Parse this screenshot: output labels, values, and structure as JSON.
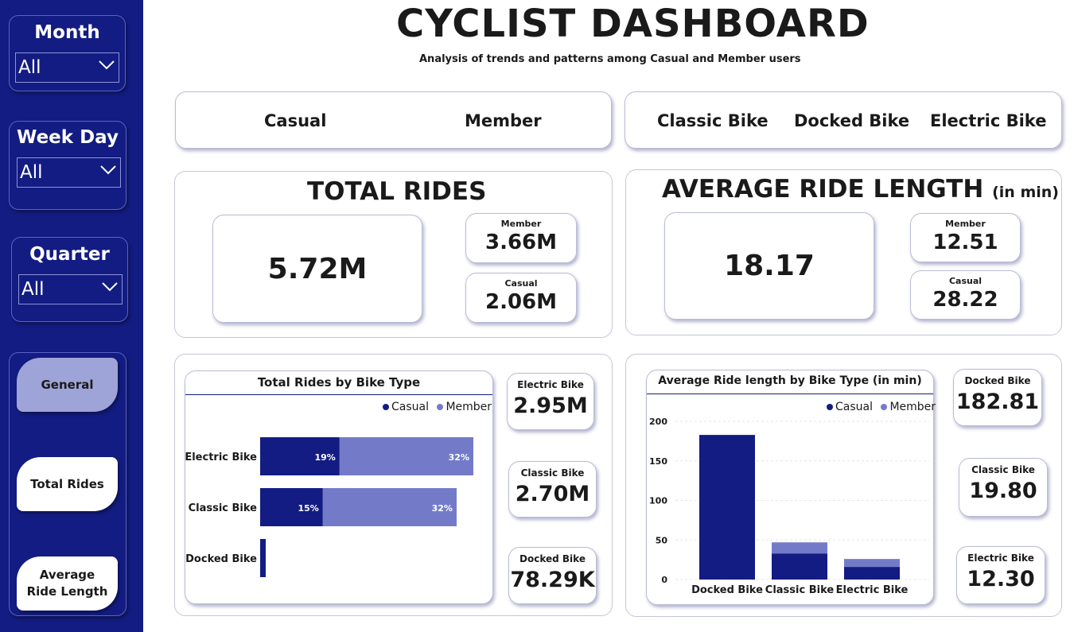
{
  "colors": {
    "sidebar": "#131c82",
    "casual": "#131c82",
    "member": "#737bc9",
    "active_button": "#9fa4d8",
    "button": "#ffffff"
  },
  "header": {
    "title": "CYCLIST DASHBOARD",
    "subtitle": "Analysis of trends and patterns among Casual and Member users"
  },
  "slicers": {
    "month": {
      "title": "Month",
      "value": "All"
    },
    "week_day": {
      "title": "Week Day",
      "value": "All"
    },
    "quarter": {
      "title": "Quarter",
      "value": "All"
    }
  },
  "nav": {
    "general": "General",
    "total_rides": "Total Rides",
    "avg_ride_line1": "Average",
    "avg_ride_line2": "Ride Length",
    "active": "general"
  },
  "user_filter": {
    "casual": "Casual",
    "member": "Member"
  },
  "bike_filter": {
    "classic": "Classic Bike",
    "docked": "Docked Bike",
    "electric": "Electric Bike"
  },
  "total_rides": {
    "title": "TOTAL RIDES",
    "value": "5.72M",
    "member_label": "Member",
    "member_value": "3.66M",
    "casual_label": "Casual",
    "casual_value": "2.06M"
  },
  "avg_length": {
    "title": "AVERAGE RIDE LENGTH",
    "unit": "(in min)",
    "value": "18.17",
    "member_label": "Member",
    "member_value": "12.51",
    "casual_label": "Casual",
    "casual_value": "28.22"
  },
  "rides_by_type_cards": [
    {
      "label": "Electric Bike",
      "value": "2.95M"
    },
    {
      "label": "Classic Bike",
      "value": "2.70M"
    },
    {
      "label": "Docked Bike",
      "value": "78.29K"
    }
  ],
  "length_by_type_cards": [
    {
      "label": "Docked Bike",
      "value": "182.81"
    },
    {
      "label": "Classic Bike",
      "value": "19.80"
    },
    {
      "label": "Electric Bike",
      "value": "12.30"
    }
  ],
  "legend": {
    "casual": "Casual",
    "member": "Member"
  },
  "chart_data": [
    {
      "type": "bar",
      "orientation": "horizontal",
      "stacked": true,
      "title": "Total Rides by Bike Type",
      "categories": [
        "Electric Bike",
        "Classic Bike",
        "Docked Bike"
      ],
      "series": [
        {
          "name": "Casual",
          "values": [
            19,
            15,
            1.4
          ],
          "labels": [
            "19%",
            "15%",
            ""
          ]
        },
        {
          "name": "Member",
          "values": [
            32,
            32,
            0
          ],
          "labels": [
            "32%",
            "32%",
            ""
          ]
        }
      ],
      "legend_position": "top-right",
      "grid": false
    },
    {
      "type": "bar",
      "orientation": "vertical",
      "stacked": true,
      "title": "Average Ride length by Bike Type (in min)",
      "categories": [
        "Docked Bike",
        "Classic Bike",
        "Electric Bike"
      ],
      "series": [
        {
          "name": "Casual",
          "values": [
            182.81,
            33,
            16
          ]
        },
        {
          "name": "Member",
          "values": [
            0,
            14,
            10
          ]
        }
      ],
      "yticks": [
        0,
        50,
        100,
        150,
        200
      ],
      "ylim": [
        0,
        200
      ],
      "legend_position": "top-right",
      "grid": true
    }
  ]
}
